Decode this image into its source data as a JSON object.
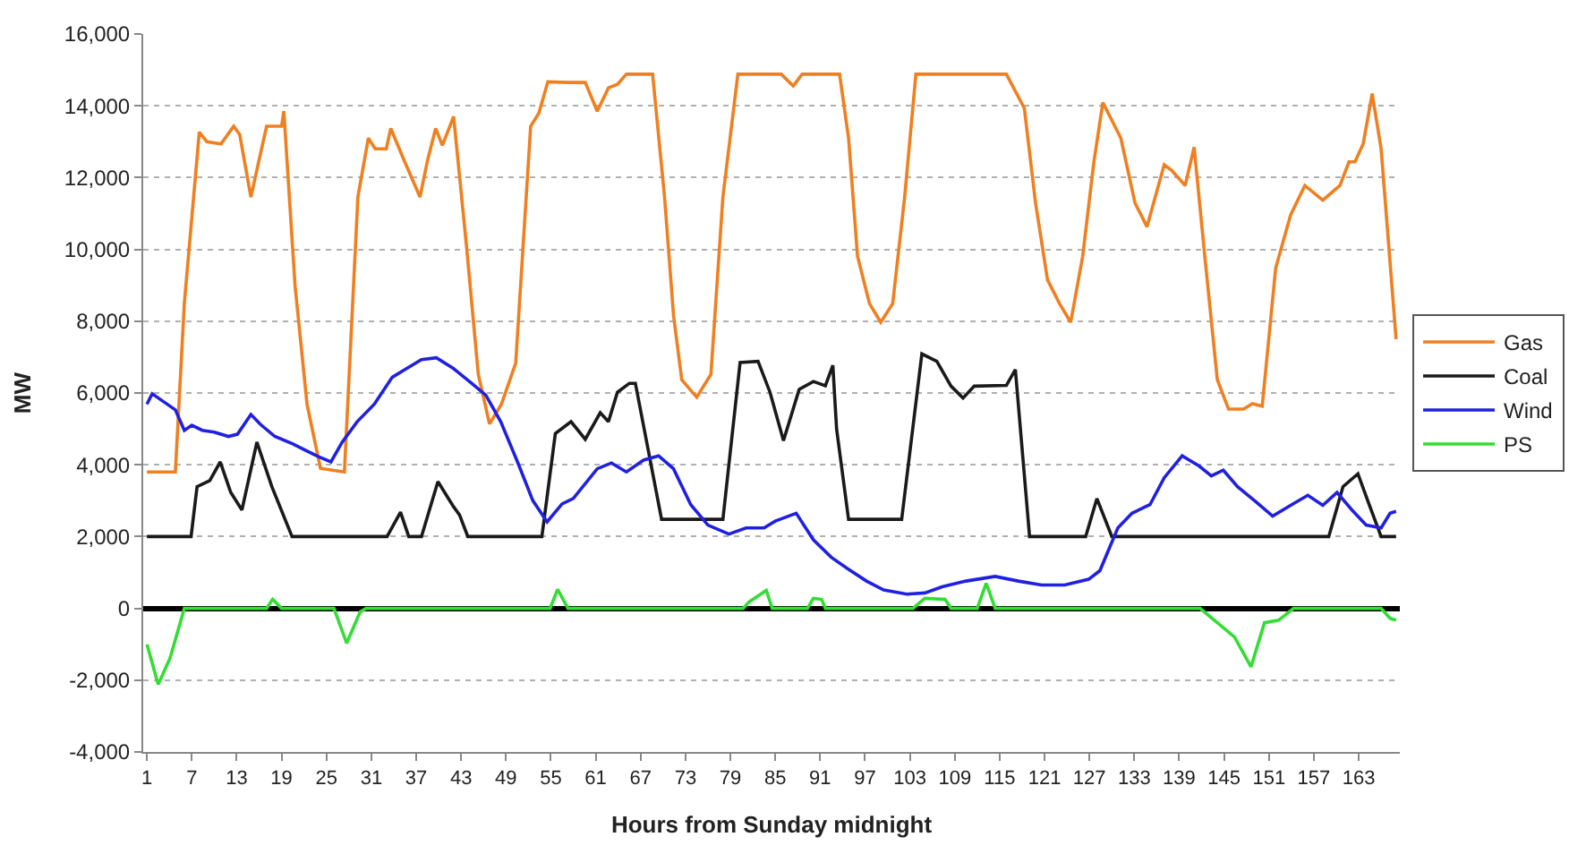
{
  "chart_data": {
    "type": "line",
    "xlabel": "Hours from Sunday midnight",
    "ylabel": "MW",
    "xlim": [
      0.5,
      168.5
    ],
    "xticks": [
      1,
      7,
      13,
      19,
      25,
      31,
      37,
      43,
      49,
      55,
      61,
      67,
      73,
      79,
      85,
      91,
      97,
      103,
      109,
      115,
      121,
      127,
      133,
      139,
      145,
      151,
      157,
      163
    ],
    "ylim": [
      -4000,
      16000
    ],
    "yticks": [
      {
        "value": -4000,
        "label": "-4,000"
      },
      {
        "value": -2000,
        "label": "-2,000"
      },
      0,
      {
        "value": 2000,
        "label": "2,000"
      },
      {
        "value": 4000,
        "label": "4,000"
      },
      {
        "value": 6000,
        "label": "6,000"
      },
      {
        "value": 8000,
        "label": "8,000"
      },
      {
        "value": 10000,
        "label": "10,000"
      },
      {
        "value": 12000,
        "label": "12,000"
      },
      {
        "value": 14000,
        "label": "14,000"
      },
      {
        "value": 16000,
        "label": "16,000"
      }
    ],
    "grid": "y",
    "legend": "right",
    "marker": "none",
    "line_style": "solid",
    "series": [
      {
        "name": "Gas",
        "color": "#f07f20",
        "x": [
          1,
          4.8,
          6,
          8,
          9,
          10.9,
          12.6,
          13.4,
          14.9,
          16,
          17,
          19,
          19.3,
          20.8,
          22.4,
          24.2,
          27.4,
          29.2,
          30.6,
          31.5,
          33,
          33.6,
          35.4,
          37.5,
          38.5,
          39.6,
          40.5,
          42,
          43.7,
          45.3,
          46.8,
          48.4,
          50.3,
          52.3,
          53.4,
          54.6,
          57.3,
          59.6,
          61.2,
          62.7,
          63.9,
          65.1,
          68.6,
          70.2,
          71.4,
          72.5,
          74.5,
          76.4,
          78,
          80,
          85.8,
          87.4,
          88.6,
          93.6,
          94.8,
          96,
          97.6,
          99.1,
          100.7,
          102.3,
          103.8,
          115.9,
          118.3,
          119.8,
          121.4,
          123,
          124.5,
          126.1,
          127.6,
          128.8,
          131.2,
          133.1,
          134.7,
          137,
          138,
          139.8,
          141,
          142.5,
          144.1,
          145.6,
          147.6,
          148.8,
          150.1,
          151.9,
          153.9,
          155.8,
          158.2,
          160.5,
          161.7,
          162.5,
          163.6,
          164.8,
          166,
          168
        ],
        "values": [
          3800,
          3800,
          8500,
          13270,
          13000,
          12940,
          13430,
          13200,
          11460,
          12500,
          13430,
          13430,
          13850,
          8990,
          5690,
          3900,
          3800,
          11460,
          13100,
          12800,
          12800,
          13370,
          12470,
          11460,
          12470,
          13370,
          12900,
          13700,
          10140,
          6520,
          5140,
          5690,
          6830,
          13430,
          13800,
          14670,
          14650,
          14650,
          13850,
          14500,
          14600,
          14880,
          14880,
          11460,
          8160,
          6370,
          5880,
          6520,
          11460,
          14880,
          14880,
          14550,
          14880,
          14880,
          13100,
          9810,
          8490,
          7970,
          8490,
          11460,
          14880,
          14880,
          13930,
          11290,
          9150,
          8490,
          7970,
          9810,
          12440,
          14090,
          13100,
          11290,
          10630,
          12360,
          12200,
          11780,
          12850,
          9650,
          6370,
          5550,
          5550,
          5700,
          5630,
          9480,
          10960,
          11780,
          11370,
          11780,
          12440,
          12440,
          12940,
          14340,
          12800,
          7500
        ]
      },
      {
        "name": "Coal",
        "color": "#1a1a1a",
        "x": [
          1,
          6.9,
          7.7,
          9.4,
          10.8,
          12.2,
          13.7,
          15.7,
          17.7,
          20.4,
          33.1,
          34.9,
          36,
          37.7,
          39.9,
          42,
          42.8,
          43.9,
          53.8,
          55.6,
          57.7,
          59.6,
          61.6,
          62.7,
          63.9,
          65.5,
          66.3,
          69.8,
          78,
          80.3,
          82.7,
          84.3,
          86.1,
          88.2,
          90.1,
          91.7,
          92.7,
          93.2,
          94.8,
          101.9,
          104.6,
          106.6,
          108.5,
          110.1,
          111.6,
          115.9,
          117.1,
          119,
          126.5,
          128,
          130,
          159,
          160.9,
          162.9,
          164.4,
          166,
          168
        ],
        "values": [
          2000,
          2000,
          3390,
          3560,
          4080,
          3230,
          2740,
          4630,
          3390,
          2000,
          2000,
          2680,
          2000,
          2000,
          3530,
          2830,
          2600,
          2000,
          2000,
          4870,
          5200,
          4710,
          5450,
          5200,
          6020,
          6270,
          6270,
          2480,
          2480,
          6850,
          6880,
          6020,
          4670,
          6100,
          6320,
          6200,
          6770,
          5000,
          2480,
          2480,
          7090,
          6880,
          6190,
          5860,
          6190,
          6210,
          6650,
          2000,
          2000,
          3060,
          2000,
          2000,
          3390,
          3750,
          2890,
          2000,
          2000
        ]
      },
      {
        "name": "Wind",
        "color": "#2020e0",
        "x": [
          1,
          1.7,
          4.8,
          6,
          7,
          8.4,
          10,
          11.9,
          13.1,
          14.9,
          16.2,
          18.1,
          20.5,
          22.4,
          24,
          25.6,
          27.1,
          29.1,
          31.4,
          33.8,
          35.7,
          37.7,
          39.7,
          42,
          44.4,
          46.3,
          48.3,
          50.6,
          52.6,
          54.5,
          56.5,
          58,
          61.2,
          63.1,
          65.1,
          67.4,
          69.4,
          71.4,
          73.7,
          76,
          78.8,
          81.1,
          83.5,
          85,
          87.8,
          90.1,
          92.5,
          94.8,
          97.2,
          99.5,
          102.6,
          105,
          107.3,
          110.5,
          114.4,
          117.5,
          120.6,
          123.7,
          126.9,
          128.4,
          130.8,
          132.7,
          135.1,
          137,
          139.4,
          141.7,
          143.3,
          144.9,
          146.8,
          149.2,
          151.5,
          153.9,
          156.2,
          158.2,
          160.1,
          162.1,
          164,
          166,
          167.2,
          168
        ],
        "values": [
          5690,
          5980,
          5530,
          4960,
          5100,
          4960,
          4910,
          4790,
          4850,
          5400,
          5120,
          4790,
          4580,
          4380,
          4220,
          4080,
          4630,
          5200,
          5690,
          6440,
          6680,
          6930,
          6980,
          6680,
          6270,
          5940,
          5200,
          4050,
          3000,
          2410,
          2910,
          3060,
          3890,
          4050,
          3800,
          4130,
          4250,
          3890,
          2890,
          2320,
          2070,
          2240,
          2240,
          2430,
          2650,
          1910,
          1420,
          1090,
          760,
          510,
          395,
          430,
          600,
          760,
          890,
          760,
          650,
          650,
          810,
          1050,
          2240,
          2650,
          2890,
          3640,
          4250,
          3960,
          3690,
          3850,
          3390,
          2980,
          2570,
          2870,
          3150,
          2870,
          3230,
          2740,
          2320,
          2240,
          2650,
          2700
        ]
      },
      {
        "name": "PS",
        "color": "#33dd33",
        "x": [
          1,
          2.5,
          4.1,
          6,
          17,
          17.8,
          19,
          26,
          27.7,
          29.5,
          30.3,
          54.9,
          55.9,
          57.3,
          80.7,
          81.5,
          83.8,
          84.6,
          89.3,
          90.1,
          91.2,
          91.7,
          103.4,
          105,
          107.7,
          108.5,
          112,
          113.2,
          114.4,
          141.8,
          144.1,
          146.4,
          148.6,
          150.4,
          152.3,
          154.3,
          166,
          167.2,
          168
        ],
        "values": [
          -1000,
          -2120,
          -1380,
          0,
          0,
          250,
          0,
          0,
          -970,
          -100,
          0,
          0,
          530,
          0,
          0,
          180,
          500,
          0,
          0,
          280,
          250,
          0,
          0,
          280,
          250,
          0,
          0,
          700,
          0,
          0,
          -400,
          -800,
          -1630,
          -400,
          -330,
          0,
          0,
          -280,
          -330
        ]
      }
    ]
  }
}
